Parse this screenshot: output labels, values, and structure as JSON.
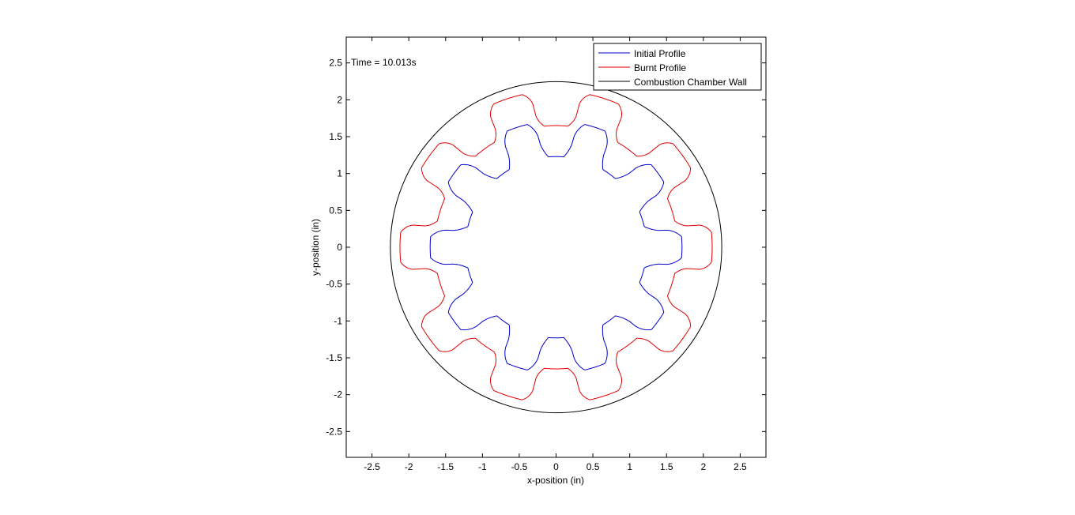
{
  "chart_data": {
    "type": "line",
    "xlabel": "x-position (in)",
    "ylabel": "y-position (in)",
    "xlim": [
      -2.85,
      2.85
    ],
    "ylim": [
      -2.85,
      2.85
    ],
    "xticks": [
      -2.5,
      -2,
      -1.5,
      -1,
      -0.5,
      0,
      0.5,
      1,
      1.5,
      2,
      2.5
    ],
    "yticks": [
      -2.5,
      -2,
      -1.5,
      -1,
      -0.5,
      0,
      0.5,
      1,
      1.5,
      2,
      2.5
    ],
    "xtick_labels": [
      "-2.5",
      "-2",
      "-1.5",
      "-1",
      "-0.5",
      "0",
      "0.5",
      "1",
      "1.5",
      "2",
      "2.5"
    ],
    "ytick_labels": [
      "-2.5",
      "-2",
      "-1.5",
      "-1",
      "-0.5",
      "0",
      "0.5",
      "1",
      "1.5",
      "2",
      "2.5"
    ],
    "grid": false,
    "legend_position": "top-right",
    "annotation": "Time = 10.013s",
    "series": [
      {
        "name": "Initial Profile",
        "color": "#0000cc",
        "shape": "star-grain",
        "lobes": 10,
        "inner_radius": 1.23,
        "outer_radius": 1.71,
        "slot_half_width": 0.12,
        "slot_fillet_radius": 0.2
      },
      {
        "name": "Burnt Profile",
        "color": "#e00000",
        "shape": "star-grain-offset",
        "lobes": 10,
        "burn_distance": 0.42,
        "inner_radius": 1.65,
        "outer_radius": 2.12
      },
      {
        "name": "Combustion Chamber Wall",
        "color": "#000000",
        "shape": "circle",
        "radius": 2.25
      }
    ]
  }
}
